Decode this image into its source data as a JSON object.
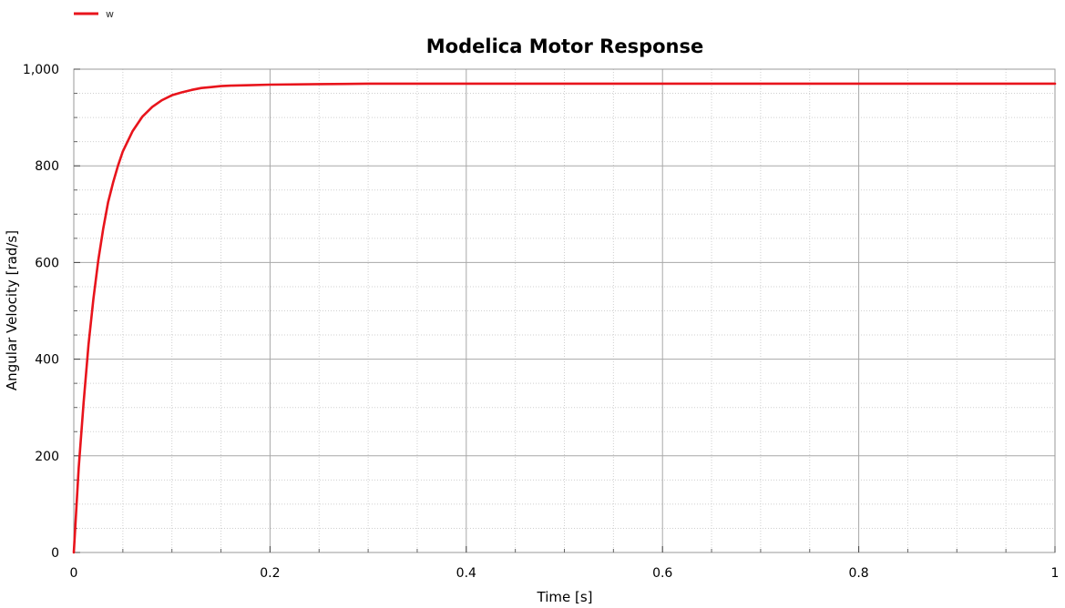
{
  "chart_data": {
    "type": "line",
    "title": "Modelica Motor Response",
    "xlabel": "Time [s]",
    "ylabel": "Angular Velocity [rad/s]",
    "xlim": [
      0,
      1
    ],
    "ylim": [
      0,
      1000
    ],
    "x_ticks": [
      0,
      0.2,
      0.4,
      0.6,
      0.8,
      1
    ],
    "x_tick_labels": [
      "0",
      "0.2",
      "0.4",
      "0.6",
      "0.8",
      "1"
    ],
    "y_ticks": [
      0,
      200,
      400,
      600,
      800,
      1000
    ],
    "y_tick_labels": [
      "0",
      "200",
      "400",
      "600",
      "800",
      "1,000"
    ],
    "grid": true,
    "legend_position": "top-left",
    "series": [
      {
        "name": "w",
        "color": "#e8141c",
        "x": [
          0,
          0.005,
          0.01,
          0.015,
          0.02,
          0.025,
          0.03,
          0.035,
          0.04,
          0.045,
          0.05,
          0.06,
          0.07,
          0.08,
          0.09,
          0.1,
          0.11,
          0.12,
          0.13,
          0.14,
          0.15,
          0.16,
          0.18,
          0.2,
          0.25,
          0.3,
          0.4,
          0.5,
          0.6,
          0.7,
          0.8,
          0.9,
          1.0
        ],
        "y": [
          0,
          175,
          310,
          430,
          525,
          605,
          670,
          725,
          765,
          800,
          830,
          872,
          902,
          922,
          936,
          946,
          952,
          957,
          961,
          963,
          965,
          966,
          967,
          968,
          969,
          970,
          970,
          970,
          970,
          970,
          970,
          970,
          970
        ]
      }
    ]
  }
}
